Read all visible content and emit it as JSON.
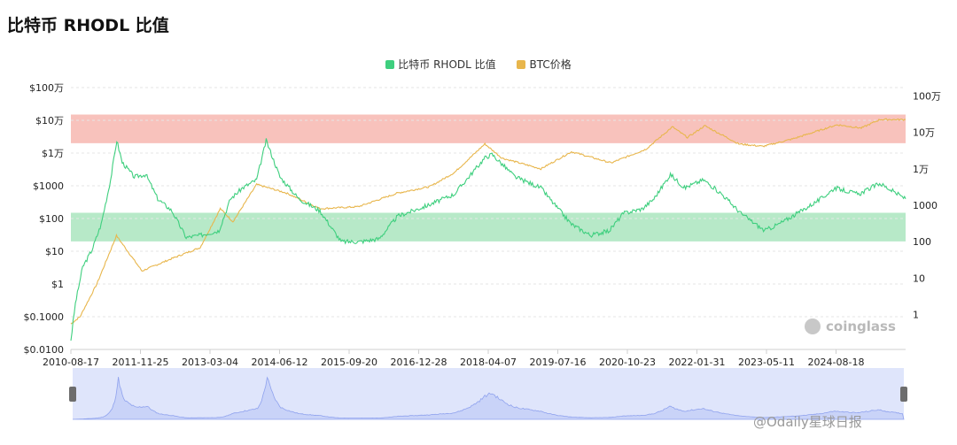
{
  "title": "比特币 RHODL 比值",
  "watermark": "@Odaily星球日报",
  "brand": "coinglass",
  "colors": {
    "rhodl": "#3ecf7e",
    "btc": "#e8b64c",
    "red_band": "#f8c2bc",
    "green_band": "#b7e9c8",
    "navigator_fill": "#dfe5fb",
    "navigator_line": "#8fa2ee"
  },
  "chart_data": {
    "type": "line",
    "title": "比特币 RHODL 比值",
    "x_tick_labels": [
      "2010-08-17",
      "2011-11-25",
      "2013-03-04",
      "2014-06-12",
      "2015-09-20",
      "2016-12-28",
      "2018-04-07",
      "2019-07-16",
      "2020-10-23",
      "2022-01-31",
      "2023-05-11",
      "2024-08-18"
    ],
    "x_range": [
      "2010-08-17",
      "2025-06-01"
    ],
    "left_axis": {
      "scale": "log",
      "range": [
        0.01,
        1000000
      ],
      "tick_values": [
        0.01,
        0.1,
        1,
        10,
        100,
        1000,
        10000,
        100000,
        1000000
      ],
      "tick_labels": [
        "$0.0100",
        "$0.1000",
        "$1",
        "$10",
        "$100",
        "$1000",
        "$1万",
        "$10万",
        "$100万"
      ]
    },
    "right_axis": {
      "scale": "log",
      "range": [
        0.11,
        1700000
      ],
      "tick_values": [
        1,
        10,
        100,
        1000,
        10000,
        100000,
        1000000
      ],
      "tick_labels": [
        "1",
        "10",
        "100",
        "1000",
        "1万",
        "10万",
        "100万"
      ]
    },
    "bands": [
      {
        "name": "red",
        "range": [
          20000,
          150000
        ]
      },
      {
        "name": "green",
        "range": [
          20,
          150
        ]
      }
    ],
    "legend_position": "top-center",
    "series": [
      {
        "name": "比特币 RHODL 比值",
        "axis": "right",
        "points": [
          [
            "2010-08-17",
            0.2
          ],
          [
            "2010-09-15",
            2
          ],
          [
            "2010-11-01",
            20
          ],
          [
            "2011-01-01",
            60
          ],
          [
            "2011-03-01",
            300
          ],
          [
            "2011-05-01",
            5000
          ],
          [
            "2011-06-10",
            60000
          ],
          [
            "2011-07-15",
            15000
          ],
          [
            "2011-10-01",
            6000
          ],
          [
            "2011-12-15",
            7000
          ],
          [
            "2012-03-01",
            1500
          ],
          [
            "2012-06-01",
            700
          ],
          [
            "2012-09-01",
            130
          ],
          [
            "2012-12-01",
            150
          ],
          [
            "2013-04-01",
            200
          ],
          [
            "2013-06-15",
            1500
          ],
          [
            "2013-09-01",
            3000
          ],
          [
            "2013-12-01",
            5000
          ],
          [
            "2014-02-01",
            60000
          ],
          [
            "2014-05-01",
            6000
          ],
          [
            "2014-09-01",
            1500
          ],
          [
            "2015-01-15",
            700
          ],
          [
            "2015-06-01",
            100
          ],
          [
            "2015-10-01",
            100
          ],
          [
            "2016-02-01",
            120
          ],
          [
            "2016-06-01",
            500
          ],
          [
            "2016-12-15",
            1000
          ],
          [
            "2017-06-01",
            2000
          ],
          [
            "2017-12-17",
            20000
          ],
          [
            "2018-02-01",
            25000
          ],
          [
            "2018-07-01",
            6000
          ],
          [
            "2018-12-15",
            3000
          ],
          [
            "2019-03-01",
            1200
          ],
          [
            "2019-07-01",
            300
          ],
          [
            "2019-11-01",
            150
          ],
          [
            "2020-03-01",
            200
          ],
          [
            "2020-06-01",
            600
          ],
          [
            "2020-10-01",
            800
          ],
          [
            "2020-12-15",
            1500
          ],
          [
            "2021-04-01",
            7000
          ],
          [
            "2021-07-01",
            3000
          ],
          [
            "2021-11-01",
            5000
          ],
          [
            "2022-03-01",
            2000
          ],
          [
            "2022-07-01",
            600
          ],
          [
            "2022-12-01",
            200
          ],
          [
            "2023-03-01",
            300
          ],
          [
            "2023-07-01",
            600
          ],
          [
            "2023-12-01",
            1500
          ],
          [
            "2024-03-01",
            3000
          ],
          [
            "2024-08-01",
            2000
          ],
          [
            "2024-12-15",
            4000
          ],
          [
            "2025-06-01",
            1500
          ]
        ]
      },
      {
        "name": "BTC价格",
        "axis": "left",
        "points": [
          [
            "2010-08-17",
            0.06
          ],
          [
            "2010-10-15",
            0.1
          ],
          [
            "2011-02-01",
            1
          ],
          [
            "2011-06-08",
            30
          ],
          [
            "2011-11-20",
            2.5
          ],
          [
            "2012-06-01",
            6
          ],
          [
            "2012-12-01",
            13
          ],
          [
            "2013-04-10",
            200
          ],
          [
            "2013-07-01",
            80
          ],
          [
            "2013-12-01",
            1100
          ],
          [
            "2014-06-12",
            600
          ],
          [
            "2015-01-15",
            200
          ],
          [
            "2015-09-20",
            230
          ],
          [
            "2016-06-01",
            600
          ],
          [
            "2016-12-28",
            950
          ],
          [
            "2017-06-01",
            2500
          ],
          [
            "2017-12-17",
            19000
          ],
          [
            "2018-04-07",
            7000
          ],
          [
            "2018-12-15",
            3300
          ],
          [
            "2019-07-01",
            11000
          ],
          [
            "2020-03-13",
            5000
          ],
          [
            "2020-10-23",
            13000
          ],
          [
            "2021-04-14",
            63000
          ],
          [
            "2021-07-20",
            30000
          ],
          [
            "2021-11-10",
            68000
          ],
          [
            "2022-06-18",
            19000
          ],
          [
            "2022-11-21",
            16000
          ],
          [
            "2023-06-01",
            27000
          ],
          [
            "2024-03-14",
            73000
          ],
          [
            "2024-08-18",
            58000
          ],
          [
            "2024-12-17",
            106000
          ],
          [
            "2025-06-01",
            105000
          ]
        ]
      }
    ]
  }
}
